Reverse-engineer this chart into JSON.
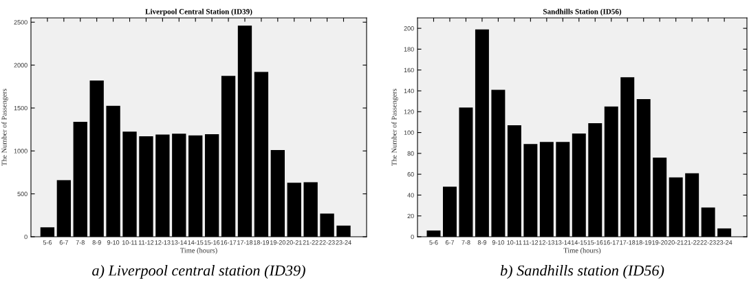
{
  "chart_data": [
    {
      "type": "bar",
      "title": "Liverpool Central Station (ID39)",
      "xlabel": "Time (hours)",
      "ylabel": "The Number of Passengers",
      "categories": [
        "5-6",
        "6-7",
        "7-8",
        "8-9",
        "9-10",
        "10-11",
        "11-12",
        "12-13",
        "13-14",
        "14-15",
        "15-16",
        "16-17",
        "17-18",
        "18-19",
        "19-20",
        "20-21",
        "21-22",
        "22-23",
        "23-24"
      ],
      "values": [
        110,
        660,
        1340,
        1820,
        1525,
        1225,
        1170,
        1190,
        1200,
        1180,
        1195,
        1875,
        2460,
        1920,
        1010,
        630,
        635,
        270,
        130
      ],
      "color": "#000000",
      "ylim": [
        0,
        2550
      ],
      "yticks": [
        0,
        500,
        1000,
        1500,
        2000,
        2500
      ],
      "grid": false,
      "annotations": [
        "a) Liverpool central station (ID39)"
      ]
    },
    {
      "type": "bar",
      "title": "Sandhills Station (ID56)",
      "xlabel": "Time (hours)",
      "ylabel": "The Number of Passengers",
      "categories": [
        "5-6",
        "6-7",
        "7-8",
        "8-9",
        "9-10",
        "10-11",
        "11-12",
        "12-13",
        "13-14",
        "14-15",
        "15-16",
        "16-17",
        "17-18",
        "18-19",
        "19-20",
        "20-21",
        "21-22",
        "22-23",
        "23-24"
      ],
      "values": [
        6,
        48,
        124,
        199,
        141,
        107,
        89,
        91,
        91,
        99,
        109,
        125,
        153,
        132,
        76,
        57,
        61,
        28,
        8
      ],
      "color": "#000000",
      "ylim": [
        0,
        210
      ],
      "yticks": [
        0,
        20,
        40,
        60,
        80,
        100,
        120,
        140,
        160,
        180,
        200
      ],
      "grid": false,
      "annotations": [
        "b) Sandhills station (ID56)"
      ]
    }
  ]
}
